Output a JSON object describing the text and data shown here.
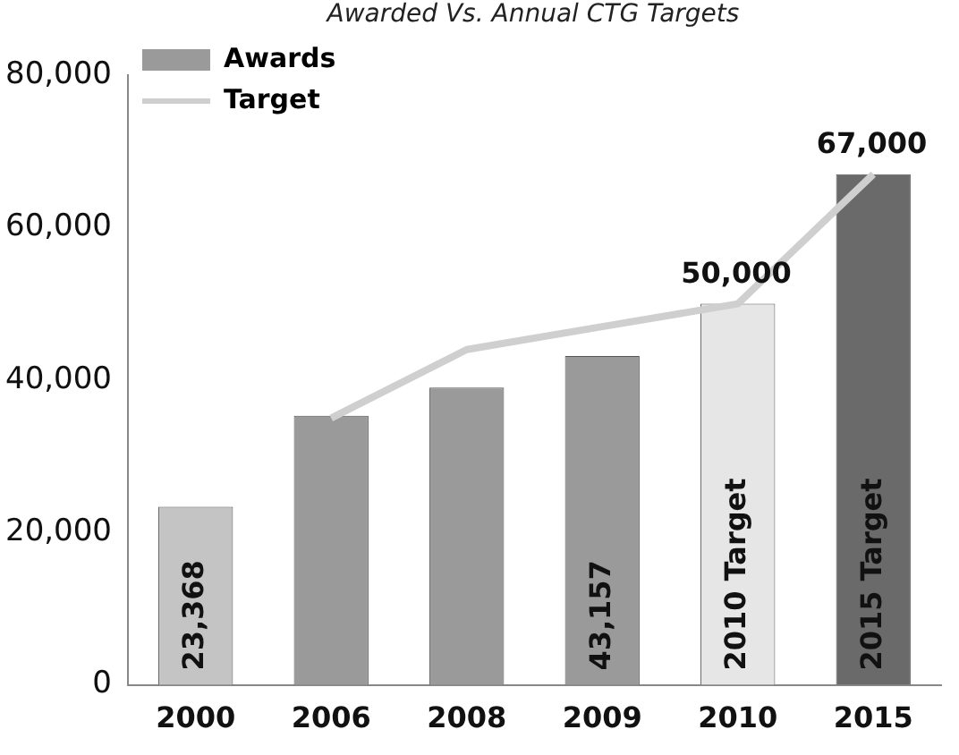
{
  "chart_data": {
    "type": "bar",
    "title": "Awarded Vs. Annual CTG Targets",
    "categories": [
      "2000",
      "2006",
      "2008",
      "2009",
      "2010",
      "2015"
    ],
    "series": [
      {
        "name": "Awards",
        "type": "bar",
        "color": "#9a9a9a",
        "colors": [
          "#c4c4c4",
          "#9a9a9a",
          "#9a9a9a",
          "#9a9a9a",
          "#e6e6e6",
          "#6a6a6a"
        ],
        "values": [
          23368,
          35300,
          39000,
          43157,
          50000,
          67000
        ],
        "value_labels": [
          "23,368",
          null,
          null,
          "43,157",
          null,
          null
        ]
      },
      {
        "name": "Target",
        "type": "line",
        "color": "#cfcfcf",
        "values": [
          null,
          35000,
          44000,
          47000,
          50000,
          67000
        ],
        "value_labels": [
          null,
          null,
          null,
          null,
          "50,000",
          "67,000"
        ]
      }
    ],
    "annotations": [
      "2010 Target",
      "2015 Target"
    ],
    "ylim": [
      0,
      80000
    ],
    "yticks": [
      {
        "value": 0,
        "label": "0"
      },
      {
        "value": 20000,
        "label": "20,000"
      },
      {
        "value": 40000,
        "label": "40,000"
      },
      {
        "value": 60000,
        "label": "60,000"
      },
      {
        "value": 80000,
        "label": "80,000"
      }
    ],
    "grid": false,
    "legend": "top left",
    "marker": "none"
  }
}
